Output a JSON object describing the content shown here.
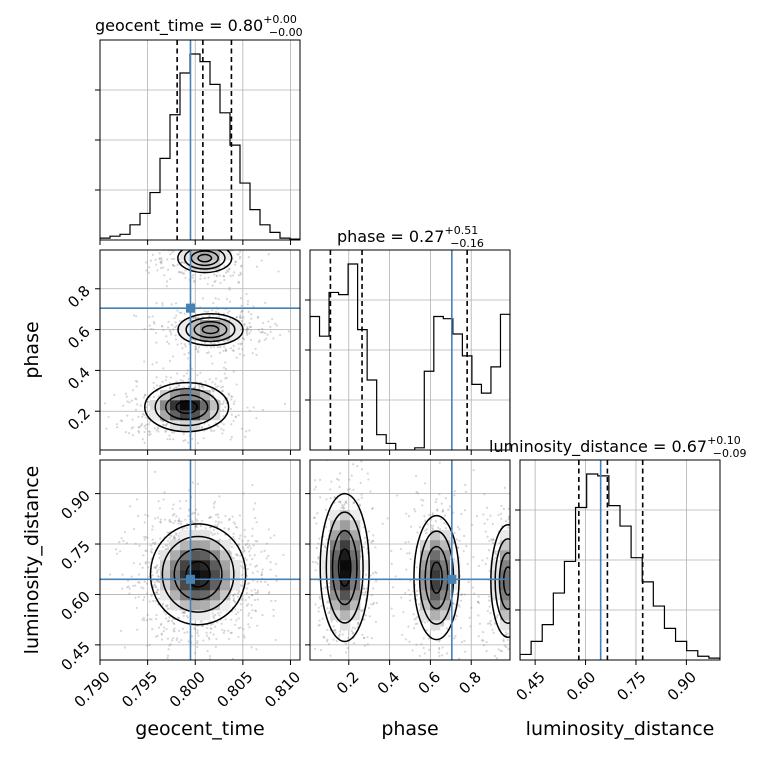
{
  "chart_data": {
    "type": "corner",
    "parameters": [
      "geocent_time",
      "phase",
      "luminosity_distance"
    ],
    "truths": {
      "geocent_time": 0.7995,
      "phase": 0.705,
      "luminosity_distance": 0.645
    },
    "ranges": {
      "geocent_time": [
        0.79,
        0.811
      ],
      "phase": [
        0.01,
        0.99
      ],
      "luminosity_distance": [
        0.405,
        1.0
      ]
    },
    "ticks": {
      "geocent_time": [
        "0.790",
        "0.795",
        "0.800",
        "0.805",
        "0.810"
      ],
      "phase": [
        "0.2",
        "0.4",
        "0.6",
        "0.8"
      ],
      "luminosity_distance": [
        "0.45",
        "0.60",
        "0.75",
        "0.90"
      ]
    },
    "titles": [
      {
        "label": "geocent_time",
        "median": "0.80",
        "plus": "+0.00",
        "minus": "−0.00"
      },
      {
        "label": "phase",
        "median": "0.27",
        "plus": "+0.51",
        "minus": "−0.16"
      },
      {
        "label": "luminosity_distance",
        "median": "0.67",
        "plus": "+0.10",
        "minus": "−0.09"
      }
    ],
    "quantiles": {
      "geocent_time": [
        0.7981,
        0.8008,
        0.8038
      ],
      "phase": [
        0.11,
        0.265,
        0.78
      ],
      "luminosity_distance": [
        0.58,
        0.665,
        0.77
      ]
    },
    "hist_geocent_time": [
      0.01,
      0.02,
      0.03,
      0.08,
      0.14,
      0.25,
      0.43,
      0.66,
      0.88,
      0.98,
      0.94,
      0.82,
      0.67,
      0.5,
      0.3,
      0.16,
      0.08,
      0.04,
      0.01,
      0.005
    ],
    "hist_phase": [
      0.61,
      0.52,
      0.72,
      0.71,
      0.85,
      0.55,
      0.32,
      0.07,
      0.03,
      0.0,
      0.0,
      0.01,
      0.36,
      0.61,
      0.6,
      0.53,
      0.43,
      0.3,
      0.26,
      0.38,
      0.62
    ],
    "hist_luminosity_distance": [
      0.03,
      0.1,
      0.19,
      0.36,
      0.53,
      0.82,
      1.0,
      0.99,
      0.83,
      0.72,
      0.55,
      0.42,
      0.29,
      0.17,
      0.1,
      0.05,
      0.02,
      0.01
    ],
    "joint_time_phase_modes": [
      {
        "x": 0.7991,
        "y": 0.22,
        "sx": 0.0022,
        "sy": 0.06,
        "w": 1.0
      },
      {
        "x": 0.8016,
        "y": 0.6,
        "sx": 0.0022,
        "sy": 0.05,
        "w": 0.6
      },
      {
        "x": 0.801,
        "y": 0.95,
        "sx": 0.002,
        "sy": 0.05,
        "w": 0.5
      }
    ],
    "joint_time_distance_modes": [
      {
        "x": 0.8003,
        "y": 0.66,
        "sx": 0.0025,
        "sy": 0.075,
        "w": 1.0
      }
    ],
    "joint_phase_distance_modes": [
      {
        "x": 0.18,
        "y": 0.68,
        "sx": 0.06,
        "sy": 0.11,
        "w": 1.0
      },
      {
        "x": 0.63,
        "y": 0.65,
        "sx": 0.06,
        "sy": 0.1,
        "w": 0.85
      },
      {
        "x": 0.98,
        "y": 0.64,
        "sx": 0.05,
        "sy": 0.1,
        "w": 0.7
      }
    ]
  }
}
